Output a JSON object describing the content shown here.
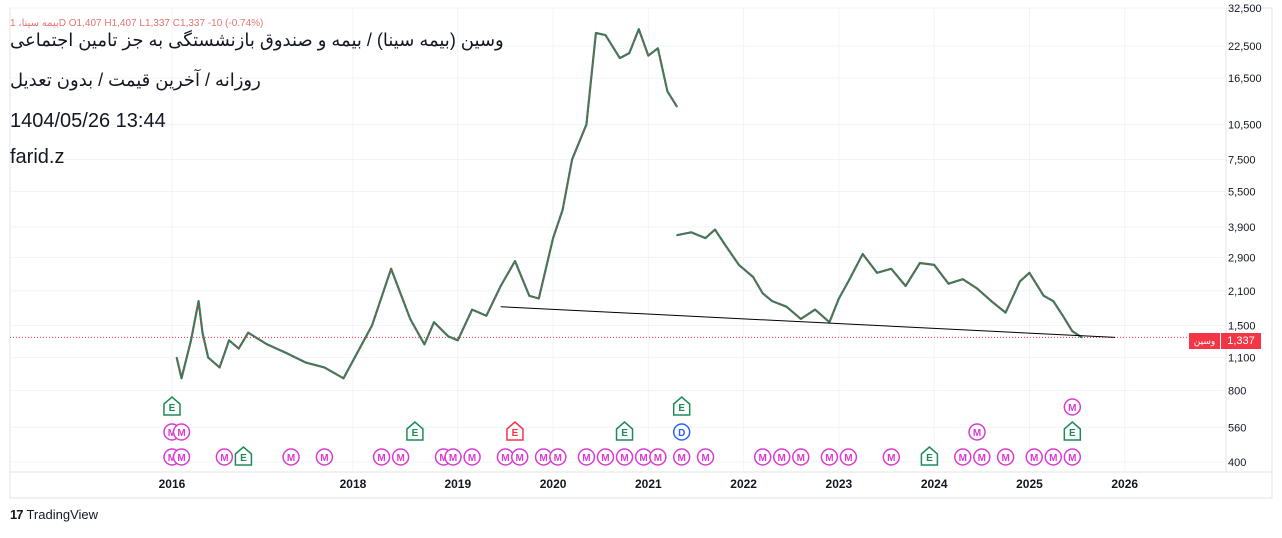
{
  "ohlc_line": {
    "symbol": "بیمه سینا، 1D",
    "open": "O1,407",
    "high": "H1,407",
    "low": "L1,337",
    "close": "C1,337",
    "change": "-10 (-0.74%)"
  },
  "overlay": {
    "line1": "وسین (بیمه سینا) / بیمه و صندوق بازنشستگی به جز تامین اجتماعی",
    "line2": "روزانه / آخرین قیمت / بدون تعدیل",
    "line3": "1404/05/26 13:44",
    "line4": "farid.z"
  },
  "badges": {
    "symbol": "وسین",
    "last_price": "1,337"
  },
  "footer": {
    "brand": "TradingView",
    "logo_text": "17"
  },
  "colors": {
    "up": "#089981",
    "down": "#f23645",
    "earnings": "#1e8c57",
    "dividend": "#2962ff",
    "marker_m": "#d93bd0",
    "trend": "#000000"
  },
  "chart_data": {
    "type": "line",
    "y_scale": "log",
    "ylim": [
      400,
      32500
    ],
    "y_ticks": [
      "32,500",
      "22,500",
      "16,500",
      "10,500",
      "7,500",
      "5,500",
      "3,900",
      "2,900",
      "2,100",
      "1,500",
      "1,100",
      "800",
      "560",
      "400"
    ],
    "y_tick_values": [
      32500,
      22500,
      16500,
      10500,
      7500,
      5500,
      3900,
      2900,
      2100,
      1500,
      1100,
      800,
      560,
      400
    ],
    "x_ticks": [
      "2016",
      "2018",
      "2019",
      "2020",
      "2021",
      "2022",
      "2023",
      "2024",
      "2025",
      "2026"
    ],
    "x_tick_values": [
      2016.0,
      2017.9,
      2019.0,
      2020.0,
      2021.0,
      2022.0,
      2023.0,
      2024.0,
      2025.0,
      2026.0
    ],
    "xlim": [
      2014.3,
      2027.0
    ],
    "last_price": 1337,
    "series": [
      {
        "x": [
          2016.05,
          2016.1,
          2016.2,
          2016.28,
          2016.32,
          2016.38,
          2016.5,
          2016.6,
          2016.7,
          2016.8,
          2017.0,
          2017.2,
          2017.4,
          2017.6,
          2017.8,
          2018.1,
          2018.3,
          2018.5,
          2018.65,
          2018.75,
          2018.9,
          2019.0,
          2019.15,
          2019.3,
          2019.45,
          2019.6,
          2019.75,
          2019.85,
          2020.0,
          2020.1,
          2020.2,
          2020.35,
          2020.45,
          2020.55,
          2020.7,
          2020.8,
          2020.9,
          2021.0,
          2021.1,
          2021.2,
          2021.3
        ],
        "y": [
          1100,
          900,
          1300,
          1900,
          1400,
          1100,
          1000,
          1300,
          1200,
          1400,
          1250,
          1150,
          1050,
          1000,
          900,
          1500,
          2600,
          1600,
          1250,
          1550,
          1350,
          1300,
          1750,
          1650,
          2200,
          2800,
          2000,
          1950,
          3500,
          4600,
          7500,
          10500,
          25500,
          25000,
          20000,
          21000,
          26500,
          20500,
          22000,
          14500,
          12500
        ]
      },
      {
        "x": [
          2021.3,
          2021.45,
          2021.6,
          2021.7,
          2021.8,
          2021.95,
          2022.1,
          2022.2,
          2022.3,
          2022.45,
          2022.6,
          2022.75,
          2022.9,
          2023.0,
          2023.1,
          2023.25,
          2023.4,
          2023.55,
          2023.7,
          2023.85,
          2024.0,
          2024.15,
          2024.3,
          2024.45,
          2024.6,
          2024.75,
          2024.9,
          2025.0,
          2025.15,
          2025.25,
          2025.35,
          2025.45,
          2025.55
        ],
        "y": [
          3600,
          3700,
          3500,
          3800,
          3300,
          2700,
          2400,
          2050,
          1900,
          1800,
          1600,
          1750,
          1550,
          1950,
          2300,
          3000,
          2500,
          2600,
          2200,
          2750,
          2700,
          2250,
          2350,
          2150,
          1900,
          1700,
          2300,
          2500,
          2000,
          1900,
          1650,
          1420,
          1337
        ]
      }
    ],
    "trendline": {
      "x": [
        2019.45,
        2025.9
      ],
      "y": [
        1800,
        1337
      ]
    },
    "event_rows": [
      {
        "row": 1,
        "markers": [
          {
            "x": 2016.0,
            "label": "E",
            "kind": "earnings"
          },
          {
            "x": 2021.35,
            "label": "E",
            "kind": "earnings"
          },
          {
            "x": 2025.45,
            "label": "M",
            "kind": "m"
          }
        ]
      },
      {
        "row": 2,
        "markers": [
          {
            "x": 2016.0,
            "label": "M",
            "kind": "m"
          },
          {
            "x": 2016.1,
            "label": "M",
            "kind": "m"
          },
          {
            "x": 2018.55,
            "label": "E",
            "kind": "earnings"
          },
          {
            "x": 2019.6,
            "label": "E",
            "kind": "earnings-red"
          },
          {
            "x": 2020.75,
            "label": "E",
            "kind": "earnings"
          },
          {
            "x": 2021.35,
            "label": "D",
            "kind": "dividend"
          },
          {
            "x": 2024.45,
            "label": "M",
            "kind": "m"
          },
          {
            "x": 2025.45,
            "label": "E",
            "kind": "earnings"
          }
        ]
      },
      {
        "row": 3,
        "markers": [
          {
            "x": 2016.0,
            "label": "M",
            "kind": "m"
          },
          {
            "x": 2016.1,
            "label": "M",
            "kind": "m"
          },
          {
            "x": 2016.55,
            "label": "M",
            "kind": "m"
          },
          {
            "x": 2016.75,
            "label": "E",
            "kind": "earnings"
          },
          {
            "x": 2017.25,
            "label": "M",
            "kind": "m"
          },
          {
            "x": 2017.6,
            "label": "M",
            "kind": "m"
          },
          {
            "x": 2018.2,
            "label": "M",
            "kind": "m"
          },
          {
            "x": 2018.4,
            "label": "M",
            "kind": "m"
          },
          {
            "x": 2018.85,
            "label": "M",
            "kind": "m"
          },
          {
            "x": 2018.95,
            "label": "M",
            "kind": "m"
          },
          {
            "x": 2019.15,
            "label": "M",
            "kind": "m"
          },
          {
            "x": 2019.5,
            "label": "M",
            "kind": "m"
          },
          {
            "x": 2019.65,
            "label": "M",
            "kind": "m"
          },
          {
            "x": 2019.9,
            "label": "M",
            "kind": "m"
          },
          {
            "x": 2020.05,
            "label": "M",
            "kind": "m"
          },
          {
            "x": 2020.35,
            "label": "M",
            "kind": "m"
          },
          {
            "x": 2020.55,
            "label": "M",
            "kind": "m"
          },
          {
            "x": 2020.75,
            "label": "M",
            "kind": "m"
          },
          {
            "x": 2020.95,
            "label": "M",
            "kind": "m"
          },
          {
            "x": 2021.1,
            "label": "M",
            "kind": "m"
          },
          {
            "x": 2021.35,
            "label": "M",
            "kind": "m"
          },
          {
            "x": 2021.6,
            "label": "M",
            "kind": "m"
          },
          {
            "x": 2022.2,
            "label": "M",
            "kind": "m"
          },
          {
            "x": 2022.4,
            "label": "M",
            "kind": "m"
          },
          {
            "x": 2022.6,
            "label": "M",
            "kind": "m"
          },
          {
            "x": 2022.9,
            "label": "M",
            "kind": "m"
          },
          {
            "x": 2023.1,
            "label": "M",
            "kind": "m"
          },
          {
            "x": 2023.55,
            "label": "M",
            "kind": "m"
          },
          {
            "x": 2023.95,
            "label": "E",
            "kind": "earnings"
          },
          {
            "x": 2024.3,
            "label": "M",
            "kind": "m"
          },
          {
            "x": 2024.5,
            "label": "M",
            "kind": "m"
          },
          {
            "x": 2024.75,
            "label": "M",
            "kind": "m"
          },
          {
            "x": 2025.05,
            "label": "M",
            "kind": "m"
          },
          {
            "x": 2025.25,
            "label": "M",
            "kind": "m"
          },
          {
            "x": 2025.45,
            "label": "M",
            "kind": "m"
          }
        ]
      }
    ]
  }
}
